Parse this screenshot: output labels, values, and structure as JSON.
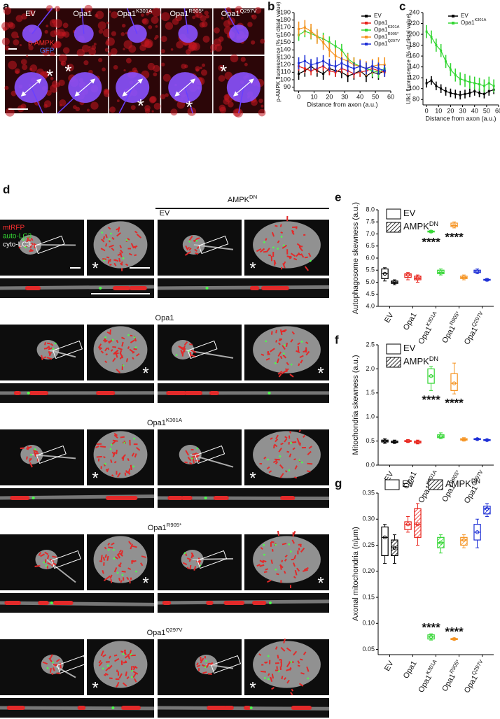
{
  "panel_a": {
    "label": "a",
    "columns": [
      "EV",
      "Opa1",
      "Opa1",
      "Opa1",
      "Opa1"
    ],
    "column_sups": [
      null,
      null,
      "K301A",
      "R905*",
      "Q297V"
    ],
    "stain_labels": [
      "p-AMPK",
      "GFP"
    ],
    "marker": "*"
  },
  "panel_d": {
    "label": "d",
    "header": "AMPK",
    "header_sup": "DN",
    "rows": [
      "EV",
      "Opa1",
      "Opa1",
      "Opa1",
      "Opa1"
    ],
    "row_sups": [
      null,
      null,
      "K301A",
      "R905*",
      "Q297V"
    ],
    "legend": [
      "mtRFP",
      "auto-LC3",
      "cyto-LC3"
    ],
    "marker": "*"
  },
  "chart_data": [
    {
      "type": "line",
      "panel_label": "b",
      "y_label": "p-AMPK fluorescence (% of distal value)",
      "x_label": "Distance from axon (a.u.)",
      "x": [
        0,
        4,
        8,
        12,
        16,
        20,
        24,
        28,
        32,
        36,
        40,
        44,
        48,
        52,
        56
      ],
      "series": [
        {
          "name": "EV",
          "color": "#000000",
          "values": [
            108,
            112,
            118,
            112,
            108,
            115,
            112,
            110,
            105,
            108,
            112,
            105,
            110,
            108,
            112
          ],
          "errors": [
            8,
            8,
            8,
            8,
            8,
            8,
            8,
            8,
            8,
            8,
            8,
            8,
            8,
            8,
            8
          ]
        },
        {
          "name": "Opa1",
          "color": "#e8231b",
          "values": [
            118,
            115,
            112,
            115,
            118,
            112,
            110,
            115,
            112,
            108,
            110,
            112,
            115,
            112,
            110
          ],
          "errors": [
            6,
            6,
            6,
            6,
            6,
            6,
            6,
            6,
            6,
            6,
            6,
            6,
            6,
            6,
            6
          ]
        },
        {
          "name": "Opa1",
          "name_sup": "K301A",
          "color": "#33d633",
          "values": [
            160,
            165,
            162,
            158,
            155,
            150,
            145,
            140,
            128,
            122,
            118,
            115,
            112,
            110,
            115
          ],
          "errors": [
            8,
            8,
            8,
            8,
            8,
            8,
            8,
            8,
            8,
            8,
            8,
            8,
            8,
            8,
            8
          ]
        },
        {
          "name": "Opa1",
          "name_sup": "R905*",
          "color": "#f5921f",
          "values": [
            168,
            170,
            165,
            158,
            150,
            140,
            132,
            128,
            125,
            120,
            118,
            115,
            118,
            120,
            120
          ],
          "errors": [
            10,
            10,
            10,
            10,
            10,
            10,
            10,
            10,
            10,
            10,
            10,
            10,
            10,
            10,
            10
          ]
        },
        {
          "name": "Opa1",
          "name_sup": "Q297V",
          "color": "#1d2fd6",
          "values": [
            122,
            125,
            120,
            122,
            125,
            120,
            118,
            122,
            118,
            115,
            118,
            115,
            118,
            115,
            112
          ],
          "errors": [
            8,
            8,
            8,
            8,
            8,
            8,
            8,
            8,
            8,
            8,
            8,
            8,
            8,
            8,
            8
          ]
        }
      ],
      "xlim": [
        -3,
        60
      ],
      "ylim": [
        85,
        190
      ],
      "xticks": [
        0,
        10,
        20,
        30,
        40,
        50,
        60
      ],
      "yticks": [
        90,
        100,
        110,
        120,
        130,
        140,
        150,
        160,
        170,
        180,
        190
      ],
      "legend": "upper right"
    },
    {
      "type": "line",
      "panel_label": "c",
      "y_label": "Ulk1 fluorescence (% of distal value)",
      "x_label": "Distance from axon (a.u.)",
      "x": [
        0,
        4,
        8,
        12,
        16,
        20,
        24,
        28,
        32,
        36,
        40,
        44,
        48,
        52,
        56
      ],
      "series": [
        {
          "name": "EV",
          "color": "#000000",
          "values": [
            110,
            115,
            105,
            100,
            95,
            92,
            90,
            88,
            90,
            92,
            95,
            92,
            90,
            95,
            98
          ],
          "errors": [
            8,
            8,
            8,
            8,
            8,
            8,
            8,
            8,
            8,
            8,
            8,
            8,
            8,
            8,
            8
          ]
        },
        {
          "name": "Opa1",
          "name_sup": "K301A",
          "color": "#33d633",
          "values": [
            205,
            195,
            180,
            170,
            150,
            135,
            125,
            118,
            115,
            112,
            110,
            108,
            105,
            110,
            105
          ],
          "errors": [
            12,
            12,
            12,
            12,
            12,
            12,
            12,
            12,
            12,
            12,
            12,
            12,
            12,
            12,
            12
          ]
        }
      ],
      "xlim": [
        -3,
        60
      ],
      "ylim": [
        70,
        240
      ],
      "xticks": [
        0,
        10,
        20,
        30,
        40,
        50,
        60
      ],
      "yticks": [
        80,
        100,
        120,
        140,
        160,
        180,
        200,
        220,
        240
      ],
      "legend": "upper right"
    },
    {
      "type": "box",
      "panel_label": "e",
      "y_label": "Autophagosome skewness (a.u.)",
      "categories": [
        "EV",
        "Opa1",
        "Opa1",
        "Opa1",
        "Opa1"
      ],
      "category_sups": [
        null,
        null,
        "K301A",
        "R905*",
        "Q297V"
      ],
      "colors": [
        "#000000",
        "#e8231b",
        "#33d633",
        "#f5921f",
        "#1d2fd6"
      ],
      "series": [
        {
          "name": "EV",
          "hatch": false,
          "stats": [
            [
              5.05,
              5.15,
              5.35,
              5.55,
              5.6
            ],
            [
              5.1,
              5.2,
              5.3,
              5.35,
              5.4
            ],
            [
              7.05,
              7.08,
              7.1,
              7.12,
              7.15
            ],
            [
              7.25,
              7.3,
              7.35,
              7.45,
              7.5
            ],
            [
              5.35,
              5.4,
              5.45,
              5.5,
              5.55
            ]
          ]
        },
        {
          "name": "AMPK",
          "name_sup": "DN",
          "hatch": true,
          "stats": [
            [
              4.9,
              4.95,
              5.0,
              5.05,
              5.1
            ],
            [
              5.0,
              5.1,
              5.15,
              5.25,
              5.3
            ],
            [
              5.3,
              5.35,
              5.4,
              5.5,
              5.55
            ],
            [
              5.1,
              5.15,
              5.2,
              5.25,
              5.3
            ],
            [
              5.05,
              5.08,
              5.1,
              5.12,
              5.15
            ]
          ]
        }
      ],
      "annotations": [
        {
          "text": "****",
          "category": 2,
          "series": 0,
          "position": "below"
        },
        {
          "text": "****",
          "category": 3,
          "series": 0,
          "position": "below"
        }
      ],
      "ylim": [
        4,
        8
      ],
      "yticks": [
        {
          "value": 4,
          "label": "4.0"
        },
        4.5,
        {
          "value": 5,
          "label": "5.0"
        },
        5.5,
        {
          "value": 6,
          "label": "6.0"
        },
        6.5,
        {
          "value": 7,
          "label": "7.0"
        },
        7.5,
        {
          "value": 8,
          "label": "8.0"
        }
      ],
      "legend": "upper left"
    },
    {
      "type": "box",
      "panel_label": "f",
      "y_label": "Mitochondria skewness (a.u.)",
      "categories": [
        "EV",
        "Opa1",
        "Opa1",
        "Opa1",
        "Opa1"
      ],
      "category_sups": [
        null,
        null,
        "K301A",
        "R905*",
        "Q297V"
      ],
      "colors": [
        "#000000",
        "#e8231b",
        "#33d633",
        "#f5921f",
        "#1d2fd6"
      ],
      "series": [
        {
          "name": "EV",
          "hatch": false,
          "stats": [
            [
              0.45,
              0.48,
              0.5,
              0.52,
              0.55
            ],
            [
              0.47,
              0.49,
              0.5,
              0.51,
              0.53
            ],
            [
              1.55,
              1.7,
              1.85,
              2.0,
              2.05
            ],
            [
              1.48,
              1.55,
              1.7,
              1.9,
              2.12
            ],
            [
              0.52,
              0.53,
              0.54,
              0.55,
              0.56
            ]
          ]
        },
        {
          "name": "AMPK",
          "name_sup": "DN",
          "hatch": true,
          "stats": [
            [
              0.45,
              0.47,
              0.48,
              0.5,
              0.52
            ],
            [
              0.44,
              0.46,
              0.48,
              0.5,
              0.52
            ],
            [
              0.55,
              0.57,
              0.6,
              0.63,
              0.67
            ],
            [
              0.5,
              0.52,
              0.53,
              0.55,
              0.57
            ],
            [
              0.5,
              0.51,
              0.52,
              0.53,
              0.54
            ]
          ]
        }
      ],
      "annotations": [
        {
          "text": "****",
          "category": 2,
          "series": 0,
          "position": "below"
        },
        {
          "text": "****",
          "category": 3,
          "series": 0,
          "position": "below"
        }
      ],
      "ylim": [
        0,
        2.5
      ],
      "yticks": [
        {
          "value": 0,
          "label": "0.0"
        },
        0.5,
        {
          "value": 1,
          "label": "1.0"
        },
        1.5,
        {
          "value": 2,
          "label": "2.0"
        },
        2.5
      ],
      "legend": "upper left"
    },
    {
      "type": "box",
      "panel_label": "g",
      "y_label": "Axonal mitochondria (n/μm)",
      "categories": [
        "EV",
        "Opa1",
        "Opa1",
        "Opa1",
        "Opa1"
      ],
      "category_sups": [
        null,
        null,
        "K301A",
        "R905*",
        "Q297V"
      ],
      "colors": [
        "#000000",
        "#e8231b",
        "#33d633",
        "#f5921f",
        "#1d2fd6"
      ],
      "series": [
        {
          "name": "EV",
          "hatch": false,
          "stats": [
            [
              0.215,
              0.23,
              0.265,
              0.285,
              0.29
            ],
            [
              0.275,
              0.28,
              0.29,
              0.295,
              0.305
            ],
            [
              0.068,
              0.07,
              0.074,
              0.078,
              0.08
            ],
            [
              0.068,
              0.069,
              0.07,
              0.071,
              0.072
            ],
            [
              0.245,
              0.26,
              0.275,
              0.29,
              0.3
            ]
          ]
        },
        {
          "name": "AMPK",
          "name_sup": "DN",
          "hatch": true,
          "stats": [
            [
              0.215,
              0.23,
              0.245,
              0.26,
              0.27
            ],
            [
              0.25,
              0.265,
              0.29,
              0.32,
              0.33
            ],
            [
              0.235,
              0.245,
              0.255,
              0.265,
              0.27
            ],
            [
              0.245,
              0.25,
              0.26,
              0.265,
              0.27
            ],
            [
              0.305,
              0.31,
              0.32,
              0.325,
              0.33
            ]
          ]
        }
      ],
      "annotations": [
        {
          "text": "****",
          "category": 2,
          "series": 0,
          "position": "above"
        },
        {
          "text": "****",
          "category": 3,
          "series": 0,
          "position": "above"
        }
      ],
      "ylim": [
        0.04,
        0.35
      ],
      "yticks": [
        0.05,
        {
          "value": 0.1,
          "label": "0.10"
        },
        0.15,
        {
          "value": 0.2,
          "label": "0.20"
        },
        0.25,
        {
          "value": 0.3,
          "label": "0.30"
        },
        0.35
      ],
      "legend": "top"
    }
  ]
}
